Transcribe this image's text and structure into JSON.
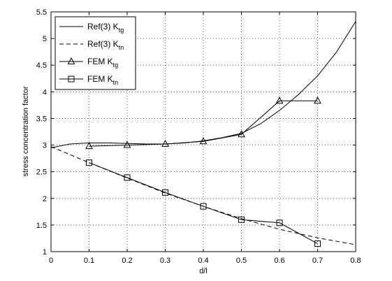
{
  "chart_data": {
    "type": "line",
    "title": "",
    "xlabel": "d/l",
    "ylabel": "stress concentration factor",
    "xlim": [
      0,
      0.8
    ],
    "ylim": [
      1,
      5.5
    ],
    "xticks": [
      "0",
      "0.1",
      "0.2",
      "0.3",
      "0.4",
      "0.5",
      "0.6",
      "0.7",
      "0.8"
    ],
    "yticks": [
      "1",
      "1.5",
      "2",
      "2.5",
      "3",
      "3.5",
      "4",
      "4.5",
      "5",
      "5.5"
    ],
    "grid": true,
    "legend_position": "top-left",
    "series": [
      {
        "name": "Ref(3) K",
        "subscript": "tg",
        "style": "solid",
        "marker": "none",
        "x": [
          0,
          0.05,
          0.1,
          0.15,
          0.2,
          0.25,
          0.3,
          0.35,
          0.4,
          0.45,
          0.5,
          0.55,
          0.6,
          0.65,
          0.7,
          0.75,
          0.8
        ],
        "y": [
          2.95,
          3.02,
          3.04,
          3.04,
          3.03,
          3.02,
          3.02,
          3.04,
          3.08,
          3.14,
          3.22,
          3.4,
          3.65,
          3.95,
          4.3,
          4.75,
          5.32
        ]
      },
      {
        "name": "Ref(3) K",
        "subscript": "tn",
        "style": "dashed",
        "marker": "none",
        "x": [
          0,
          0.1,
          0.2,
          0.3,
          0.4,
          0.5,
          0.6,
          0.7,
          0.8
        ],
        "y": [
          2.97,
          2.67,
          2.38,
          2.1,
          1.85,
          1.62,
          1.42,
          1.26,
          1.13
        ]
      },
      {
        "name": "FEM K",
        "subscript": "tg",
        "style": "solid",
        "marker": "triangle",
        "x": [
          0.1,
          0.2,
          0.3,
          0.4,
          0.5,
          0.6,
          0.7
        ],
        "y": [
          2.98,
          3.0,
          3.02,
          3.07,
          3.2,
          3.83,
          3.83
        ]
      },
      {
        "name": "FEM K",
        "subscript": "tn",
        "style": "solid",
        "marker": "square",
        "x": [
          0.1,
          0.2,
          0.3,
          0.4,
          0.5,
          0.6,
          0.7
        ],
        "y": [
          2.67,
          2.39,
          2.11,
          1.85,
          1.6,
          1.54,
          1.15
        ]
      }
    ]
  }
}
